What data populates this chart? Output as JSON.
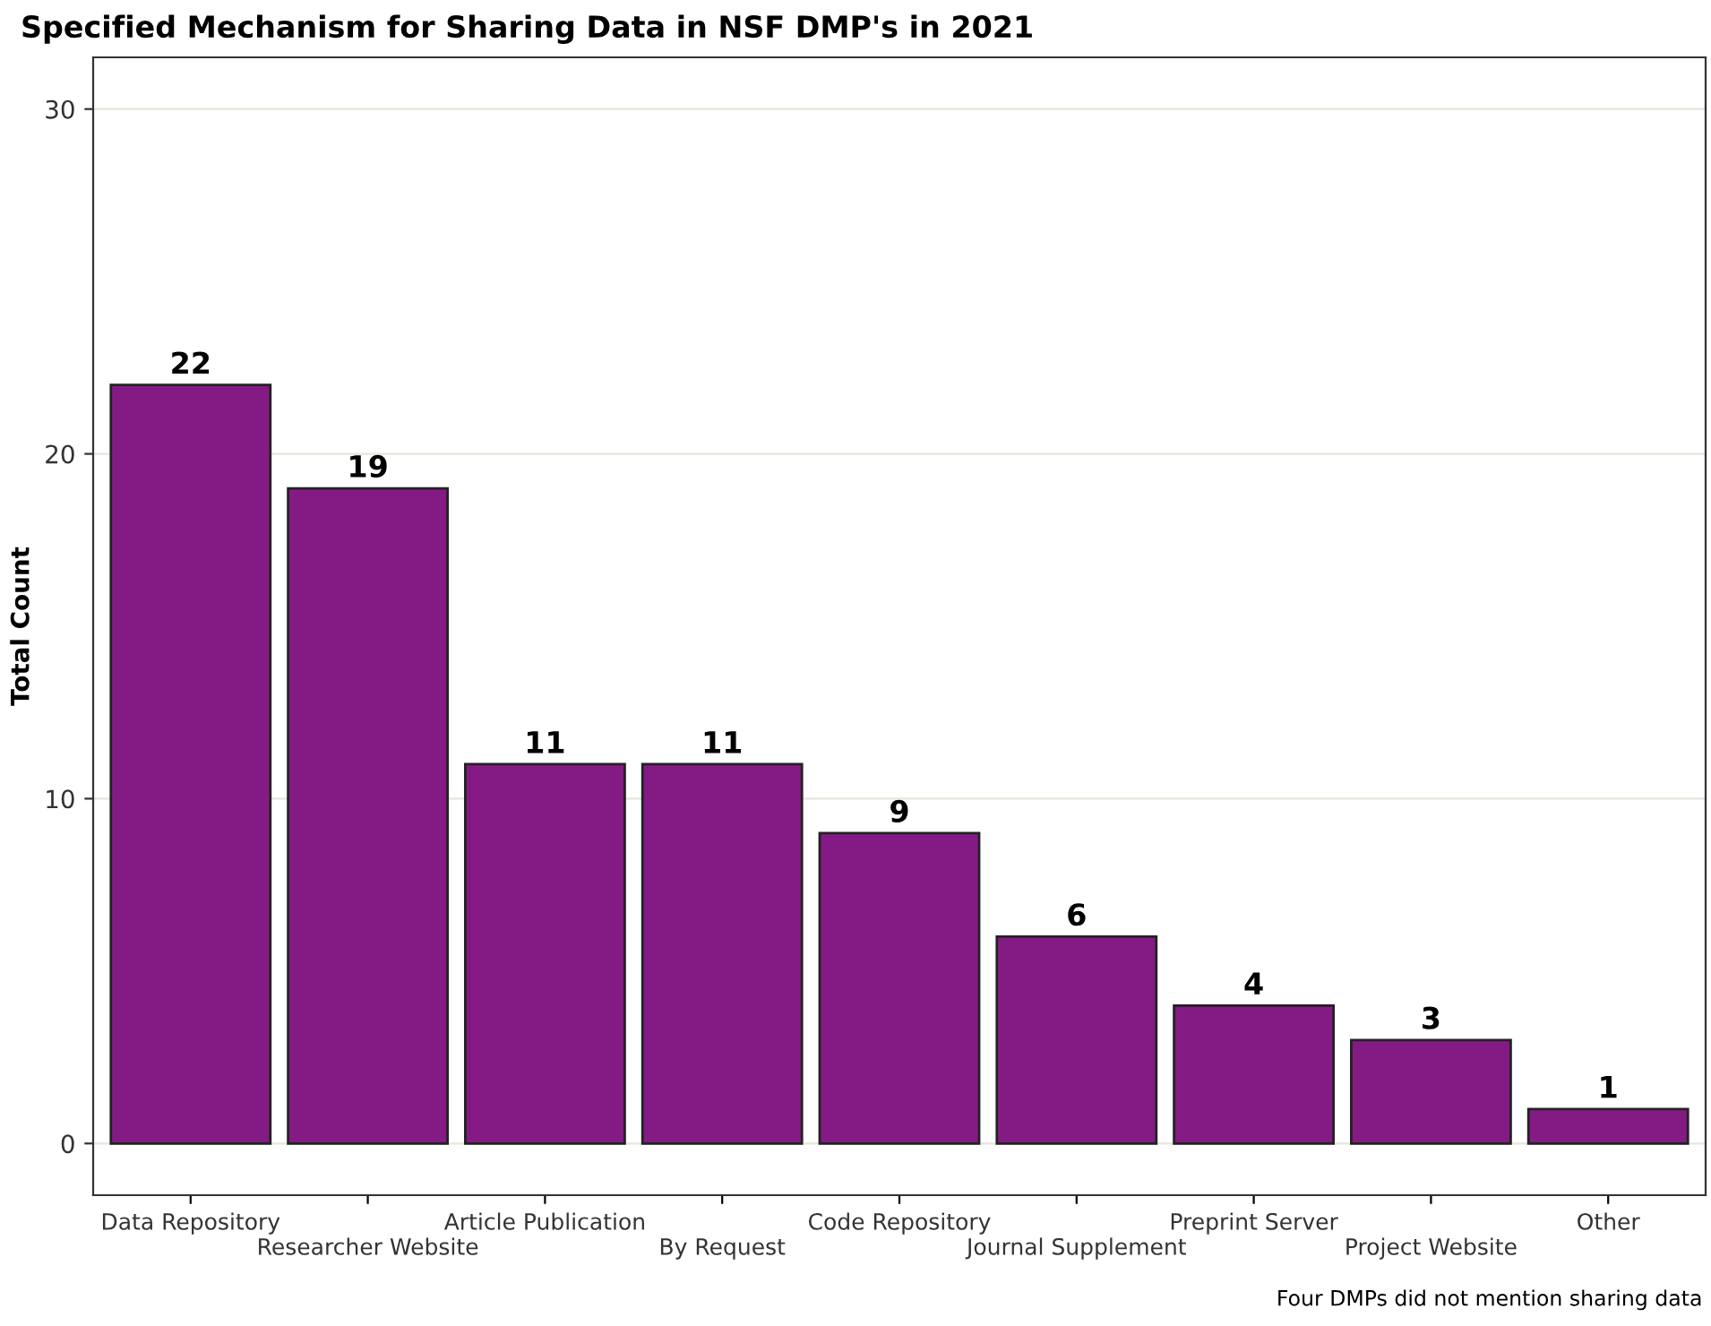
{
  "chart_data": {
    "type": "bar",
    "title": "Specified Mechanism for Sharing Data in NSF DMP's in 2021",
    "ylabel": "Total Count",
    "categories": [
      "Data Repository",
      "Researcher Website",
      "Article Publication",
      "By Request",
      "Code Repository",
      "Journal Supplement",
      "Preprint Server",
      "Project Website",
      "Other"
    ],
    "values": [
      22,
      19,
      11,
      11,
      9,
      6,
      4,
      3,
      1
    ],
    "color": "#841b85",
    "ylim": [
      -1.5,
      31.5
    ],
    "yticks": [
      0,
      10,
      20,
      30
    ],
    "grid": "y",
    "data_labels": true,
    "annotations": [
      "Four DMPs did not mention sharing data"
    ]
  }
}
